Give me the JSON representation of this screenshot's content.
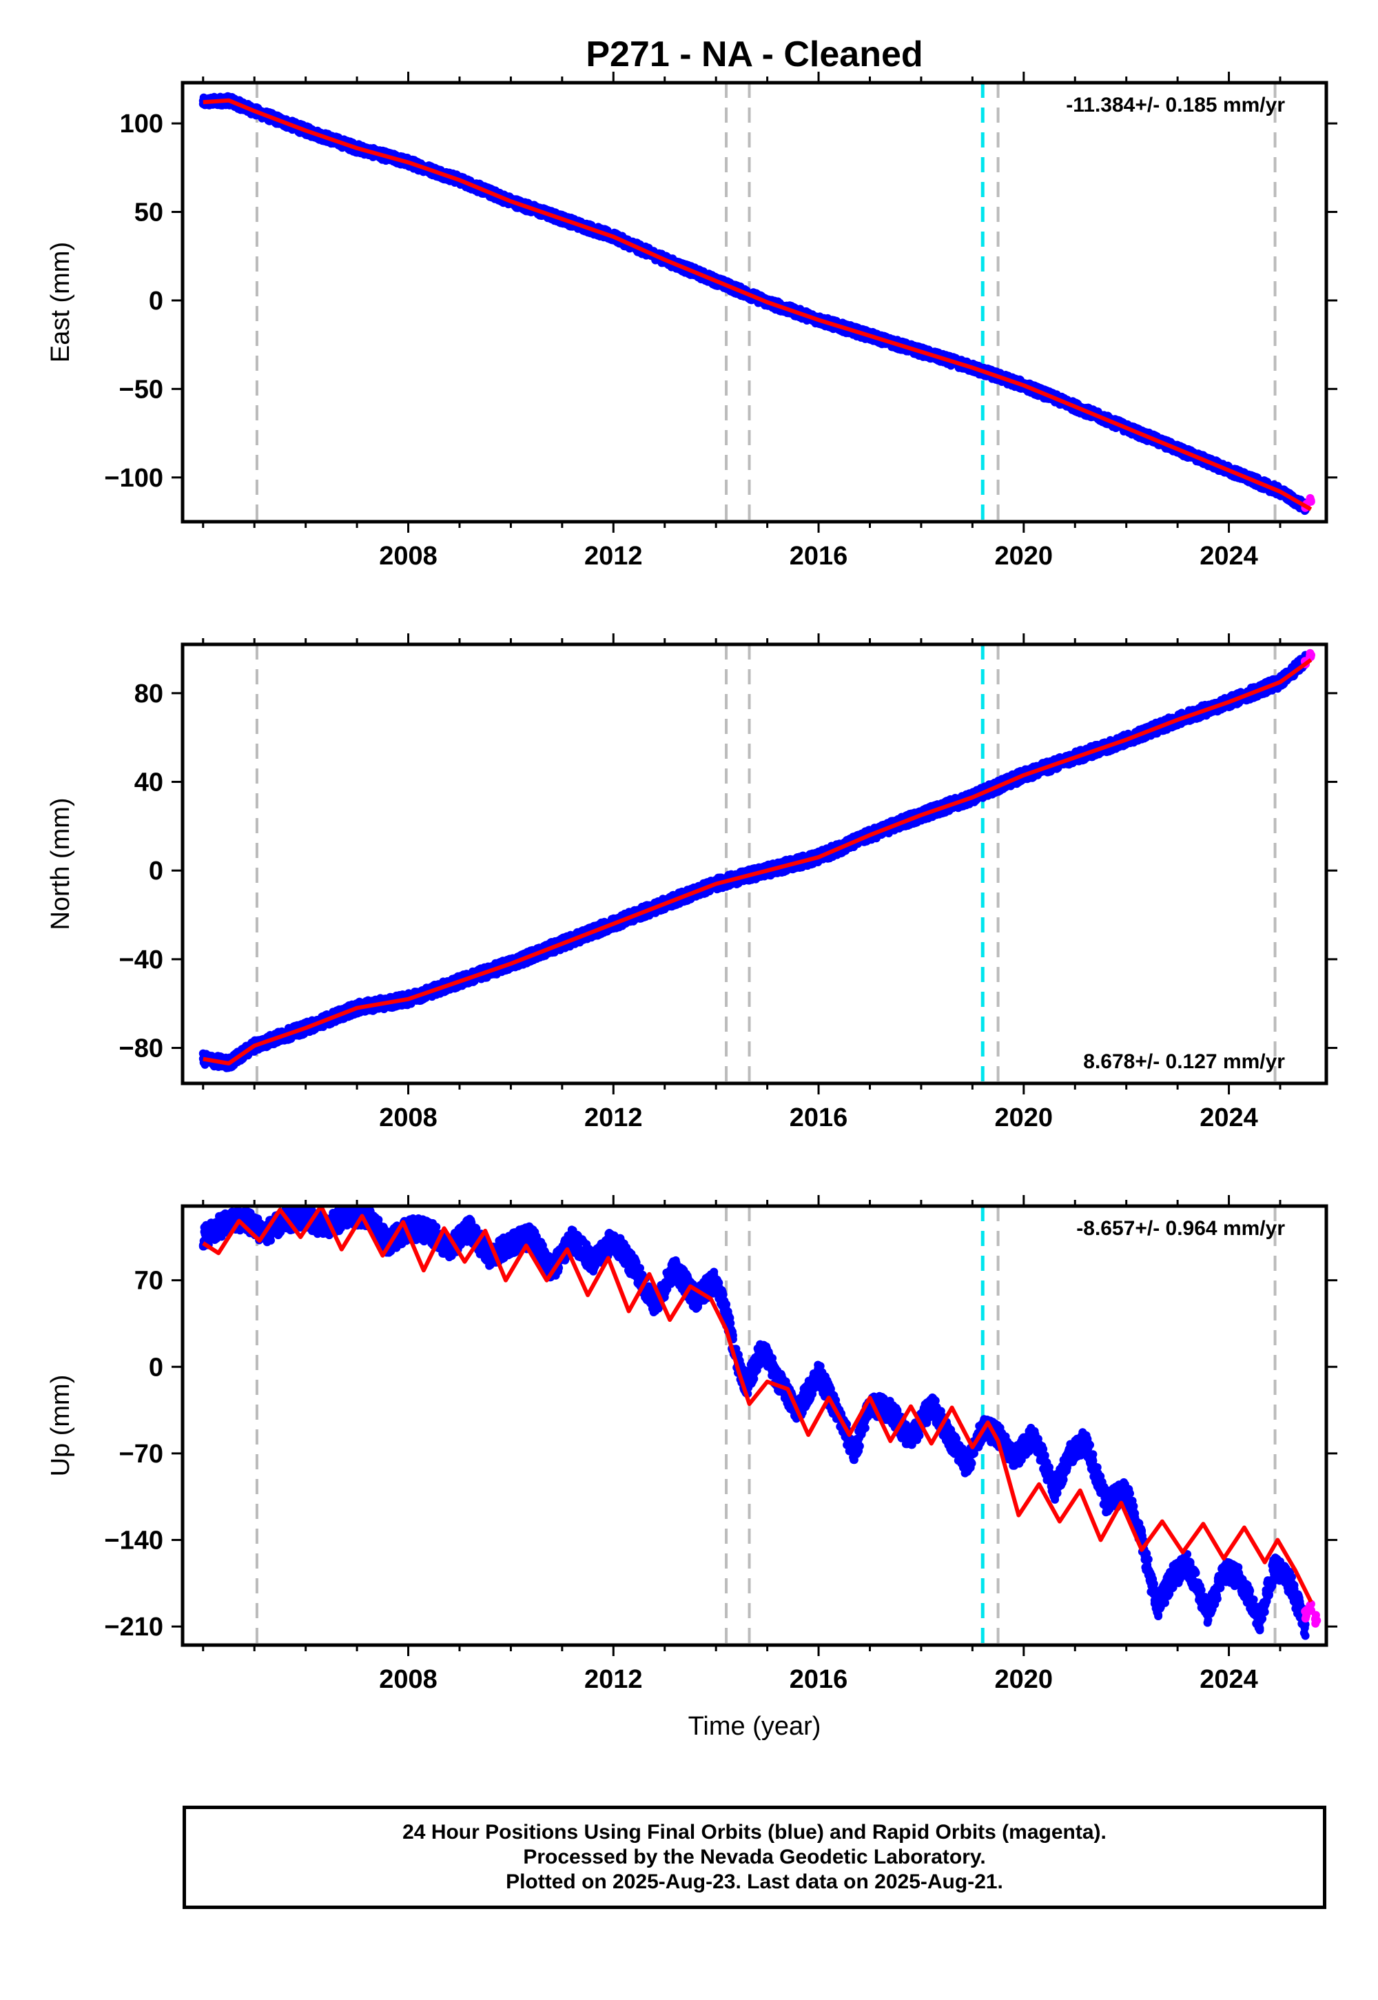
{
  "title": "P271  - NA - Cleaned",
  "colors": {
    "final_orbits": "#0000ff",
    "rapid_orbits": "#ff00ff",
    "model": "#ff0000",
    "break_gray": "#bbbbbb",
    "break_cyan": "#00e5ee"
  },
  "chart_data": [
    {
      "type": "scatter",
      "panel": "east",
      "ylabel": "East (mm)",
      "xlabel": "",
      "xlim": [
        2003.6,
        2025.9
      ],
      "ylim": [
        -125,
        123
      ],
      "xticks": [
        2008,
        2012,
        2016,
        2020,
        2024
      ],
      "yticks": [
        100,
        50,
        0,
        -50,
        -100
      ],
      "ytick_labels": [
        "100",
        "50",
        "0",
        "−50",
        "−100"
      ],
      "rate_label": "-11.384+/- 0.185 mm/yr",
      "rate_position": "top-right",
      "gray_breaks": [
        2005.05,
        2014.2,
        2014.65,
        2019.5,
        2024.9
      ],
      "cyan_breaks": [
        2019.2
      ],
      "series": [
        {
          "role": "final_orbits",
          "x": [
            2004.0,
            2004.5,
            2005.0,
            2006.0,
            2007.0,
            2008.0,
            2009.0,
            2010.0,
            2011.0,
            2012.0,
            2013.0,
            2014.0,
            2015.0,
            2016.0,
            2017.0,
            2018.0,
            2019.0,
            2020.0,
            2021.0,
            2022.0,
            2023.0,
            2024.0,
            2025.0,
            2025.5
          ],
          "y": [
            112,
            113,
            107,
            96,
            86,
            78,
            68,
            56,
            46,
            36,
            23,
            11,
            -1,
            -11,
            -20,
            -29,
            -38,
            -48,
            -60,
            -72,
            -84,
            -96,
            -108,
            -117
          ]
        },
        {
          "role": "rapid_orbits",
          "x": [
            2025.5,
            2025.6
          ],
          "y": [
            -116,
            -113
          ]
        },
        {
          "role": "model",
          "x": [
            2004.0,
            2004.5,
            2005.0,
            2006.0,
            2007.0,
            2008.0,
            2009.0,
            2010.0,
            2011.0,
            2012.0,
            2013.0,
            2014.0,
            2015.0,
            2016.0,
            2017.0,
            2018.0,
            2019.0,
            2020.0,
            2021.0,
            2022.0,
            2023.0,
            2024.0,
            2025.0,
            2025.6
          ],
          "y": [
            112,
            113,
            107,
            96,
            86,
            78,
            68,
            56,
            46,
            36,
            23,
            11,
            -1,
            -11,
            -20,
            -29,
            -38,
            -48,
            -60,
            -72,
            -84,
            -96,
            -108,
            -118
          ]
        }
      ]
    },
    {
      "type": "scatter",
      "panel": "north",
      "ylabel": "North (mm)",
      "xlabel": "",
      "xlim": [
        2003.6,
        2025.9
      ],
      "ylim": [
        -96,
        102
      ],
      "xticks": [
        2008,
        2012,
        2016,
        2020,
        2024
      ],
      "yticks": [
        80,
        40,
        0,
        -40,
        -80
      ],
      "ytick_labels": [
        "80",
        "40",
        "0",
        "−40",
        "−80"
      ],
      "rate_label": "8.678+/- 0.127 mm/yr",
      "rate_position": "bottom-right",
      "gray_breaks": [
        2005.05,
        2014.2,
        2014.65,
        2019.5,
        2024.9
      ],
      "cyan_breaks": [
        2019.2
      ],
      "series": [
        {
          "role": "final_orbits",
          "x": [
            2004.0,
            2004.5,
            2005.0,
            2006.0,
            2007.0,
            2008.0,
            2009.0,
            2010.0,
            2011.0,
            2012.0,
            2013.0,
            2014.0,
            2015.0,
            2016.0,
            2017.0,
            2018.0,
            2019.0,
            2020.0,
            2021.0,
            2022.0,
            2023.0,
            2024.0,
            2025.0,
            2025.5
          ],
          "y": [
            -85,
            -87,
            -79,
            -71,
            -62,
            -58,
            -50,
            -42,
            -33,
            -24,
            -15,
            -6,
            0,
            6,
            16,
            25,
            33,
            43,
            51,
            59,
            68,
            76,
            85,
            95
          ]
        },
        {
          "role": "rapid_orbits",
          "x": [
            2025.5,
            2025.6
          ],
          "y": [
            94,
            97
          ]
        },
        {
          "role": "model",
          "x": [
            2004.0,
            2004.5,
            2005.0,
            2006.0,
            2007.0,
            2008.0,
            2009.0,
            2010.0,
            2011.0,
            2012.0,
            2013.0,
            2014.0,
            2015.0,
            2016.0,
            2017.0,
            2018.0,
            2019.0,
            2020.0,
            2021.0,
            2022.0,
            2023.0,
            2024.0,
            2025.0,
            2025.6
          ],
          "y": [
            -85,
            -87,
            -79,
            -71,
            -62,
            -58,
            -50,
            -42,
            -33,
            -24,
            -15,
            -6,
            0,
            6,
            16,
            25,
            33,
            43,
            51,
            59,
            68,
            76,
            85,
            95
          ]
        }
      ]
    },
    {
      "type": "scatter",
      "panel": "up",
      "ylabel": "Up (mm)",
      "xlabel": "Time (year)",
      "xlim": [
        2003.6,
        2025.9
      ],
      "ylim": [
        -225,
        130
      ],
      "xticks": [
        2008,
        2012,
        2016,
        2020,
        2024
      ],
      "yticks": [
        70,
        0,
        -70,
        -140,
        -210
      ],
      "ytick_labels": [
        "70",
        "0",
        "−70",
        "−140",
        "−210"
      ],
      "rate_label": "-8.657+/- 0.964 mm/yr",
      "rate_position": "top-right",
      "gray_breaks": [
        2005.05,
        2014.2,
        2014.65,
        2019.5,
        2024.9
      ],
      "cyan_breaks": [
        2019.2
      ],
      "series": [
        {
          "role": "final_orbits",
          "x": [
            2004.0,
            2004.4,
            2004.8,
            2005.2,
            2005.6,
            2006.0,
            2006.4,
            2006.8,
            2007.2,
            2007.6,
            2008.0,
            2008.4,
            2008.8,
            2009.2,
            2009.6,
            2010.0,
            2010.4,
            2010.8,
            2011.2,
            2011.6,
            2012.0,
            2012.4,
            2012.8,
            2013.2,
            2013.6,
            2014.0,
            2014.25,
            2014.4,
            2014.6,
            2014.9,
            2015.2,
            2015.6,
            2016.0,
            2016.4,
            2016.7,
            2017.0,
            2017.4,
            2017.8,
            2018.2,
            2018.6,
            2018.9,
            2019.2,
            2019.5,
            2019.8,
            2020.2,
            2020.6,
            2020.9,
            2021.2,
            2021.6,
            2022.0,
            2022.3,
            2022.6,
            2022.9,
            2023.2,
            2023.6,
            2023.9,
            2024.2,
            2024.6,
            2024.9,
            2025.2,
            2025.5
          ],
          "y": [
            105,
            115,
            120,
            108,
            118,
            122,
            112,
            123,
            122,
            100,
            112,
            110,
            95,
            112,
            88,
            100,
            105,
            78,
            103,
            85,
            103,
            80,
            50,
            80,
            55,
            70,
            35,
            5,
            -15,
            15,
            -10,
            -35,
            -5,
            -40,
            -70,
            -30,
            -35,
            -60,
            -30,
            -60,
            -80,
            -50,
            -55,
            -75,
            -55,
            -100,
            -70,
            -60,
            -110,
            -100,
            -140,
            -195,
            -170,
            -160,
            -200,
            -165,
            -170,
            -205,
            -160,
            -175,
            -210
          ]
        },
        {
          "role": "rapid_orbits",
          "x": [
            2025.5,
            2025.6,
            2025.7
          ],
          "y": [
            -200,
            -195,
            -205
          ]
        },
        {
          "role": "model",
          "x": [
            2004.0,
            2004.3,
            2004.7,
            2005.1,
            2005.5,
            2005.9,
            2006.3,
            2006.7,
            2007.1,
            2007.5,
            2007.9,
            2008.3,
            2008.7,
            2009.1,
            2009.5,
            2009.9,
            2010.3,
            2010.7,
            2011.1,
            2011.5,
            2011.9,
            2012.3,
            2012.7,
            2013.1,
            2013.5,
            2013.9,
            2014.2,
            2014.45,
            2014.65,
            2015.0,
            2015.4,
            2015.8,
            2016.2,
            2016.6,
            2017.0,
            2017.4,
            2017.8,
            2018.2,
            2018.6,
            2019.0,
            2019.3,
            2019.5,
            2019.9,
            2020.3,
            2020.7,
            2021.1,
            2021.5,
            2021.9,
            2022.3,
            2022.7,
            2023.1,
            2023.5,
            2023.9,
            2024.3,
            2024.7,
            2024.95,
            2025.3,
            2025.6
          ],
          "y": [
            100,
            92,
            118,
            102,
            127,
            105,
            130,
            95,
            122,
            90,
            117,
            78,
            112,
            85,
            110,
            70,
            98,
            70,
            95,
            58,
            88,
            45,
            75,
            38,
            65,
            55,
            30,
            -5,
            -30,
            -12,
            -18,
            -55,
            -25,
            -55,
            -25,
            -60,
            -32,
            -62,
            -33,
            -65,
            -45,
            -60,
            -120,
            -95,
            -125,
            -100,
            -140,
            -110,
            -148,
            -125,
            -150,
            -127,
            -155,
            -130,
            -158,
            -140,
            -165,
            -190
          ]
        }
      ]
    }
  ],
  "footer": {
    "line1": "24 Hour Positions Using Final Orbits (blue) and Rapid Orbits (magenta).",
    "line2": "Processed by the Nevada Geodetic Laboratory.",
    "line3": "Plotted on 2025-Aug-23. Last data on 2025-Aug-21."
  }
}
